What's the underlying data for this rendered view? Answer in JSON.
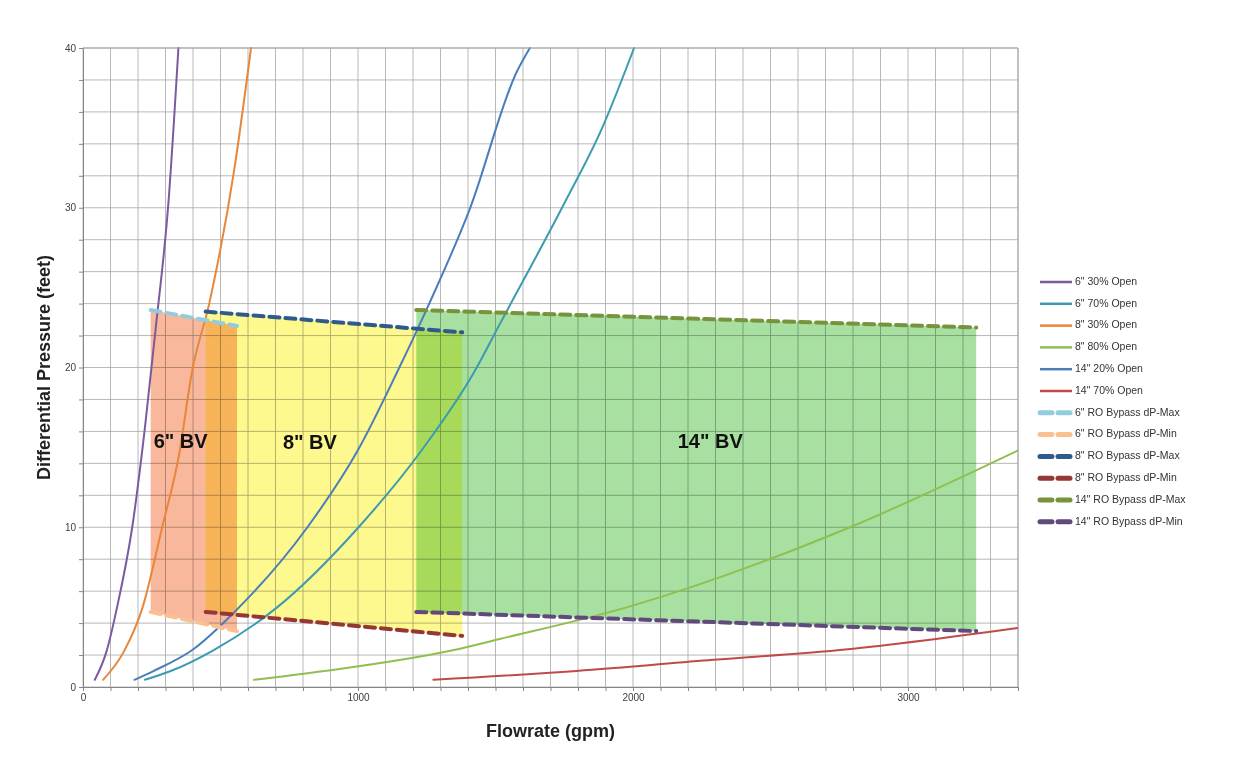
{
  "chart_data": {
    "type": "line",
    "xlabel": "Flowrate (gpm)",
    "ylabel": "Differential Pressure (feet)",
    "xlim": [
      0,
      3400
    ],
    "ylim": [
      0,
      40
    ],
    "xticks": [
      0,
      {
        "value": 100,
        "label": null
      },
      {
        "value": 200,
        "label": null
      },
      {
        "value": 300,
        "label": null
      },
      {
        "value": 400,
        "label": null
      },
      {
        "value": 500,
        "label": null
      },
      {
        "value": 600,
        "label": null
      },
      {
        "value": 700,
        "label": null
      },
      {
        "value": 800,
        "label": null
      },
      {
        "value": 900,
        "label": null
      },
      1000,
      {
        "value": 1100,
        "label": null
      },
      {
        "value": 1200,
        "label": null
      },
      {
        "value": 1300,
        "label": null
      },
      {
        "value": 1400,
        "label": null
      },
      {
        "value": 1500,
        "label": null
      },
      {
        "value": 1600,
        "label": null
      },
      {
        "value": 1700,
        "label": null
      },
      {
        "value": 1800,
        "label": null
      },
      {
        "value": 1900,
        "label": null
      },
      2000,
      {
        "value": 2100,
        "label": null
      },
      {
        "value": 2200,
        "label": null
      },
      {
        "value": 2300,
        "label": null
      },
      {
        "value": 2400,
        "label": null
      },
      {
        "value": 2500,
        "label": null
      },
      {
        "value": 2600,
        "label": null
      },
      {
        "value": 2700,
        "label": null
      },
      {
        "value": 2800,
        "label": null
      },
      {
        "value": 2900,
        "label": null
      },
      3000,
      {
        "value": 3100,
        "label": null
      },
      {
        "value": 3200,
        "label": null
      },
      {
        "value": 3300,
        "label": null
      },
      {
        "value": 3400,
        "label": null
      }
    ],
    "yticks": [
      0,
      {
        "value": 2,
        "label": null
      },
      {
        "value": 4,
        "label": null
      },
      {
        "value": 6,
        "label": null
      },
      {
        "value": 8,
        "label": null
      },
      10,
      {
        "value": 12,
        "label": null
      },
      {
        "value": 14,
        "label": null
      },
      {
        "value": 16,
        "label": null
      },
      {
        "value": 18,
        "label": null
      },
      20,
      {
        "value": 22,
        "label": null
      },
      {
        "value": 24,
        "label": null
      },
      {
        "value": 26,
        "label": null
      },
      {
        "value": 28,
        "label": null
      },
      30,
      {
        "value": 32,
        "label": null
      },
      {
        "value": 34,
        "label": null
      },
      {
        "value": 36,
        "label": null
      },
      {
        "value": 38,
        "label": null
      },
      40
    ],
    "grid": true,
    "legend": "right",
    "marker": "none",
    "bands": [
      {
        "axis": "x",
        "from": 246,
        "to": 560,
        "label": "6\" BV",
        "color": "#f9b89c"
      },
      {
        "axis": "x",
        "from": 446,
        "to": 1379,
        "label": "8\" BV",
        "color": "#fdf98e"
      },
      {
        "axis": "x",
        "from": 1212,
        "to": 3248,
        "label": "14\" BV",
        "color": "#a8e0a2"
      }
    ],
    "series": [
      {
        "name": "6\" 30% Open",
        "color": "#7a5ba0",
        "x": [
          43,
          85,
          124,
          179,
          225,
          264,
          311,
          347
        ],
        "values": [
          0.45,
          2.2,
          5,
          10,
          16.2,
          22.4,
          30.4,
          40
        ]
      },
      {
        "name": "6\" 70% Open",
        "color": "#3b9bb0",
        "x": [
          225,
          319,
          474,
          707,
          1002,
          1235,
          1422,
          1515,
          1748,
          1888,
          2004
        ],
        "values": [
          0.45,
          1,
          2.3,
          5,
          10,
          14.9,
          19.7,
          22.7,
          30.2,
          35,
          40
        ]
      },
      {
        "name": "8\" 30% Open",
        "color": "#e8863a",
        "x": [
          73,
          148,
          217,
          288,
          350,
          396,
          459,
          551,
          611
        ],
        "values": [
          0.45,
          2.2,
          5,
          10,
          14.6,
          19.7,
          24,
          32.5,
          40
        ]
      },
      {
        "name": "8\" 80% Open",
        "color": "#8fbf4f",
        "x": [
          622,
          878,
          1344,
          1515,
          1980,
          2789,
          3399
        ],
        "values": [
          0.45,
          1,
          2.3,
          3,
          5,
          10,
          14.8
        ]
      },
      {
        "name": "14\" 20% Open",
        "color": "#4a7ebb",
        "x": [
          187,
          256,
          396,
          551,
          816,
          1002,
          1142,
          1259,
          1406,
          1577,
          1625
        ],
        "values": [
          0.45,
          1,
          2.3,
          4.7,
          10,
          14.9,
          19.7,
          24,
          29.9,
          38.5,
          40
        ]
      },
      {
        "name": "14\" 70% Open",
        "color": "#be4b48",
        "x": [
          1274,
          1795,
          2292,
          2743,
          3399
        ],
        "values": [
          0.45,
          1,
          1.7,
          2.3,
          3.7
        ]
      },
      {
        "name": "6\" RO Bypass dP-Max",
        "color": "#93cddd",
        "line_style": "dashed",
        "x": [
          246,
          560
        ],
        "values": [
          23.6,
          22.6
        ]
      },
      {
        "name": "6\" RO Bypass dP-Min",
        "color": "#fac090",
        "line_style": "dashed",
        "x": [
          246,
          560
        ],
        "values": [
          4.7,
          3.5
        ]
      },
      {
        "name": "8\" RO Bypass dP-Max",
        "color": "#2f5b8c",
        "line_style": "dashed",
        "x": [
          446,
          1379
        ],
        "values": [
          23.5,
          22.2
        ]
      },
      {
        "name": "8\" RO Bypass dP-Min",
        "color": "#953735",
        "line_style": "dashed",
        "x": [
          446,
          1379
        ],
        "values": [
          4.7,
          3.2
        ]
      },
      {
        "name": "14\" RO Bypass dP-Max",
        "color": "#77933c",
        "line_style": "dashed",
        "x": [
          1212,
          3248
        ],
        "values": [
          23.6,
          22.5
        ]
      },
      {
        "name": "14\" RO Bypass dP-Min",
        "color": "#604a7b",
        "line_style": "dashed",
        "x": [
          1212,
          3248
        ],
        "values": [
          4.7,
          3.5
        ]
      }
    ]
  }
}
